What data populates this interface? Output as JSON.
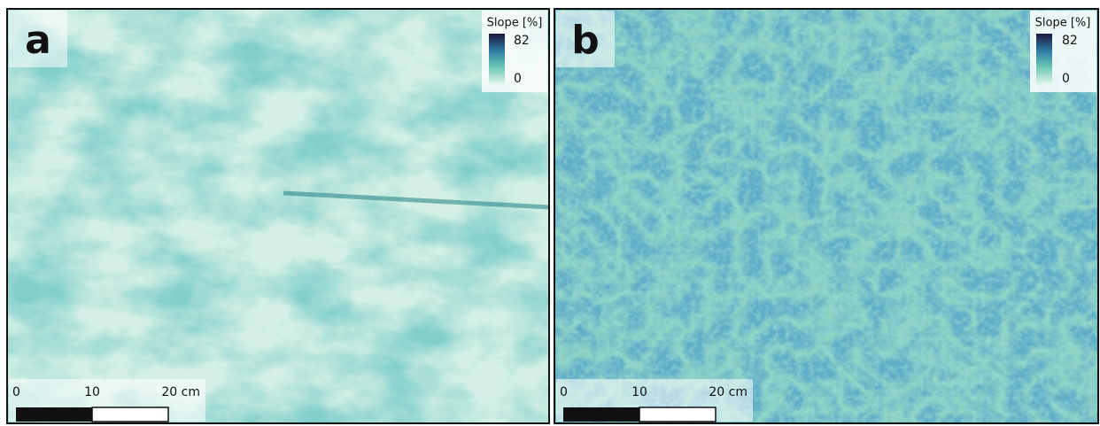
{
  "panels": [
    {
      "label": "a",
      "legend": {
        "title": "Slope [%]",
        "max": "82",
        "min": "0"
      },
      "scale_bar": {
        "labels": [
          "0",
          "10",
          "20 cm"
        ]
      }
    },
    {
      "label": "b",
      "legend": {
        "title": "Slope [%]",
        "max": "82",
        "min": "0"
      },
      "scale_bar": {
        "labels": [
          "0",
          "10",
          "20 cm"
        ]
      }
    }
  ]
}
